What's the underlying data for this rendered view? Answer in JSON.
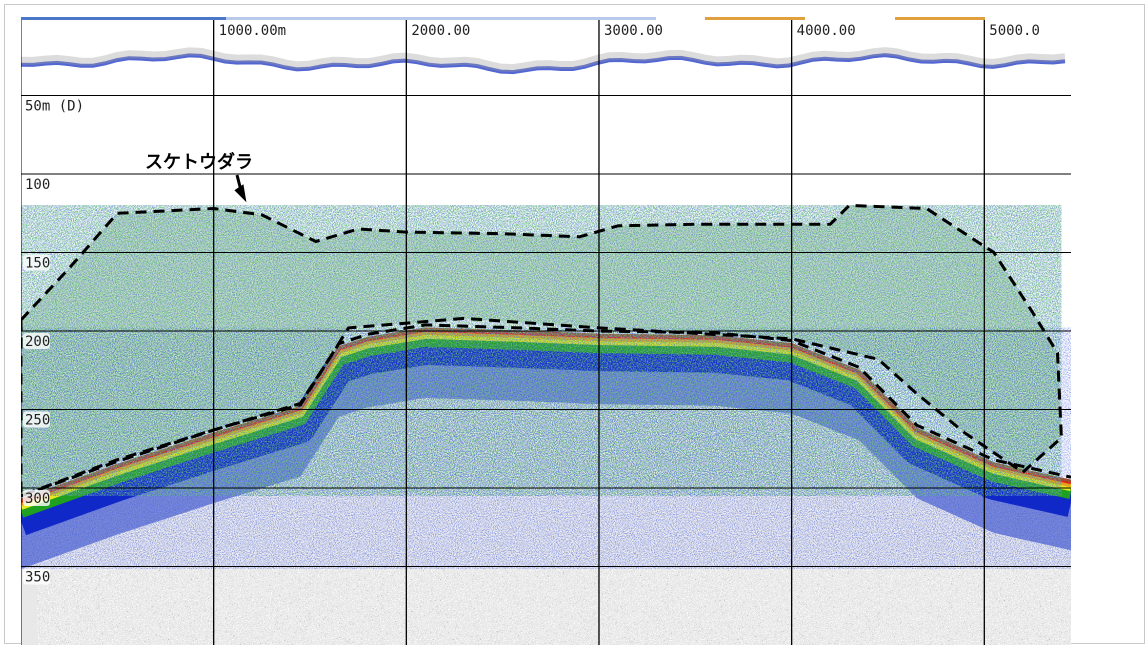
{
  "chart_data": {
    "type": "heatmap",
    "title": "",
    "xlabel": "",
    "ylabel": "",
    "x_ticks": [
      {
        "value": 1000,
        "label": "1000.00m"
      },
      {
        "value": 2000,
        "label": "2000.00"
      },
      {
        "value": 3000,
        "label": "3000.00"
      },
      {
        "value": 4000,
        "label": "4000.00"
      },
      {
        "value": 5000,
        "label": "5000.0"
      }
    ],
    "y_ticks": [
      {
        "value": 50,
        "label": "50m (D)"
      },
      {
        "value": 100,
        "label": "100"
      },
      {
        "value": 150,
        "label": "150"
      },
      {
        "value": 200,
        "label": "200"
      },
      {
        "value": 250,
        "label": "250"
      },
      {
        "value": 300,
        "label": "300"
      },
      {
        "value": 350,
        "label": "350"
      }
    ],
    "xlim": [
      0,
      5450
    ],
    "ylim": [
      0,
      400
    ],
    "y_inverted": true,
    "grid": true,
    "color_scale": [
      "#9a9a9a",
      "#1028c8",
      "#20a020",
      "#e8e820",
      "#e8a020",
      "#e02020",
      "#a05030"
    ],
    "seabed_depth": [
      {
        "x": 0,
        "depth": 307
      },
      {
        "x": 500,
        "depth": 285
      },
      {
        "x": 1000,
        "depth": 265
      },
      {
        "x": 1450,
        "depth": 248
      },
      {
        "x": 1650,
        "depth": 210
      },
      {
        "x": 1800,
        "depth": 204
      },
      {
        "x": 2100,
        "depth": 198
      },
      {
        "x": 2600,
        "depth": 200
      },
      {
        "x": 3000,
        "depth": 202
      },
      {
        "x": 3600,
        "depth": 203
      },
      {
        "x": 4000,
        "depth": 208
      },
      {
        "x": 4350,
        "depth": 225
      },
      {
        "x": 4650,
        "depth": 262
      },
      {
        "x": 5050,
        "depth": 284
      },
      {
        "x": 5450,
        "depth": 295
      }
    ],
    "fish_school_boundary": [
      {
        "x": 0,
        "depth": 193
      },
      {
        "x": 250,
        "depth": 160
      },
      {
        "x": 500,
        "depth": 125
      },
      {
        "x": 1000,
        "depth": 122
      },
      {
        "x": 1250,
        "depth": 126
      },
      {
        "x": 1530,
        "depth": 143
      },
      {
        "x": 1750,
        "depth": 135
      },
      {
        "x": 2000,
        "depth": 137
      },
      {
        "x": 2500,
        "depth": 138
      },
      {
        "x": 2900,
        "depth": 140
      },
      {
        "x": 3100,
        "depth": 133
      },
      {
        "x": 3500,
        "depth": 132
      },
      {
        "x": 4200,
        "depth": 132
      },
      {
        "x": 4300,
        "depth": 120
      },
      {
        "x": 4700,
        "depth": 122
      },
      {
        "x": 5050,
        "depth": 150
      },
      {
        "x": 5250,
        "depth": 188
      },
      {
        "x": 5380,
        "depth": 214
      },
      {
        "x": 5400,
        "depth": 268
      },
      {
        "x": 5200,
        "depth": 290
      },
      {
        "x": 4900,
        "depth": 265
      },
      {
        "x": 4650,
        "depth": 240
      },
      {
        "x": 4450,
        "depth": 218
      },
      {
        "x": 4000,
        "depth": 205
      },
      {
        "x": 3000,
        "depth": 198
      },
      {
        "x": 2300,
        "depth": 192
      },
      {
        "x": 1700,
        "depth": 198
      },
      {
        "x": 1450,
        "depth": 247
      },
      {
        "x": 1000,
        "depth": 263
      },
      {
        "x": 500,
        "depth": 282
      },
      {
        "x": 0,
        "depth": 305
      }
    ],
    "annotations": [
      {
        "text": "スケトウダラ",
        "x": 1170,
        "depth": 118
      }
    ]
  }
}
